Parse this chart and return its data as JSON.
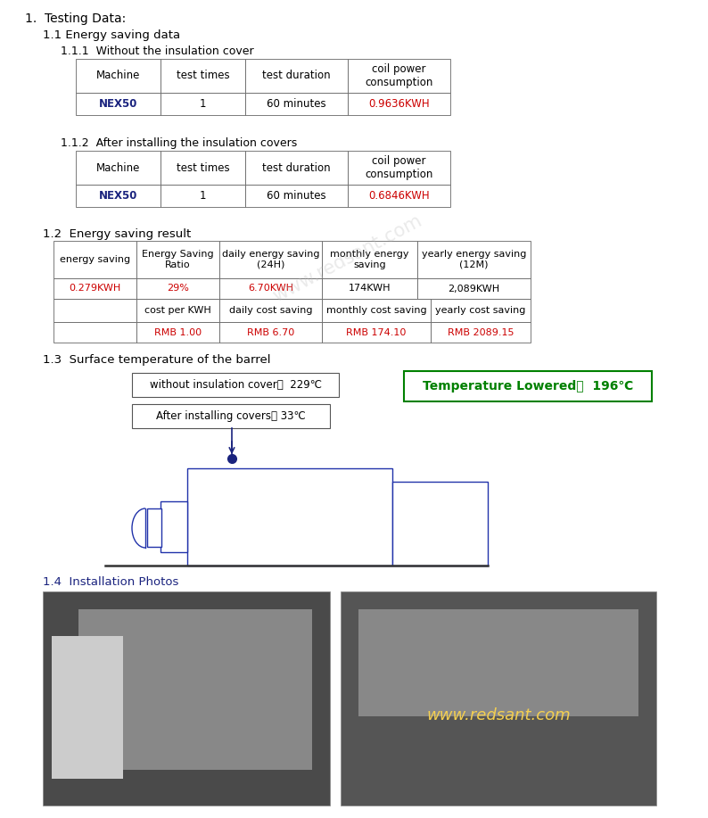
{
  "section1": "1.  Testing Data:",
  "section11": "1.1 Energy saving data",
  "section111": "1.1.1  Without the insulation cover",
  "table1_headers": [
    "Machine",
    "test times",
    "test duration",
    "coil power\nconsumption"
  ],
  "table1_row": [
    "NEX50",
    "1",
    "60 minutes",
    "0.9636KWH"
  ],
  "section112": "1.1.2  After installing the insulation covers",
  "table2_headers": [
    "Machine",
    "test times",
    "test duration",
    "coil power\nconsumption"
  ],
  "table2_row": [
    "NEX50",
    "1",
    "60 minutes",
    "0.6846KWH"
  ],
  "section12": "1.2  Energy saving result",
  "table3_headers": [
    "energy saving",
    "Energy Saving\nRatio",
    "daily energy saving\n(24H)",
    "monthly energy\nsaving",
    "yearly energy saving\n(12M)"
  ],
  "table3_row": [
    "0.279KWH",
    "29%",
    "6.70KWH",
    "174KWH",
    "2,089KWH"
  ],
  "table4_headers": [
    "",
    "cost per KWH",
    "daily cost saving",
    "monthly cost saving",
    "yearly cost saving"
  ],
  "table4_row": [
    "",
    "RMB 1.00",
    "RMB 6.70",
    "RMB 174.10",
    "RMB 2089.15"
  ],
  "section13": "1.3  Surface temperature of the barrel",
  "box1_text": "without insulation cover：  229℃",
  "box2_text": "After installing covers： 33℃",
  "highlight_text": "Temperature Lowered：  196℃",
  "section14": "1.4  Installation Photos",
  "red_color": "#CC0000",
  "dark_navy": "#1a237e",
  "green_color": "#008000",
  "bg_color": "#ffffff"
}
